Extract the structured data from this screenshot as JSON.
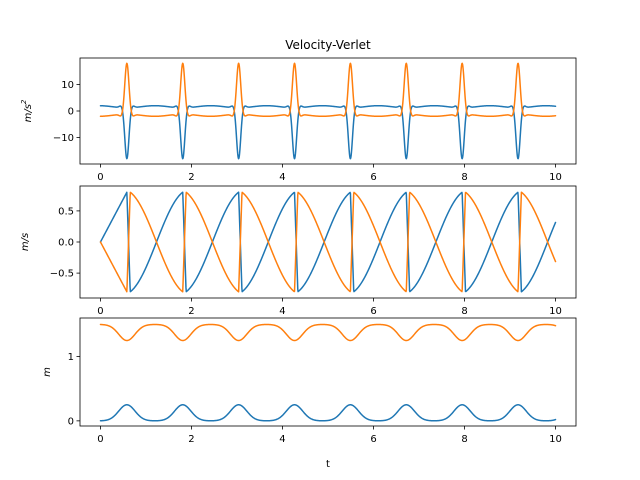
{
  "chart_data": [
    {
      "type": "line",
      "title": "Velocity-Verlet",
      "ylabel": "m/s",
      "ylabel_superscript": "2",
      "xlim": [
        -0.45,
        10.45
      ],
      "ylim": [
        -20,
        20
      ],
      "xticks": [
        0,
        2,
        4,
        6,
        8,
        10
      ],
      "xtick_labels": [
        "0",
        "2",
        "4",
        "6",
        "8",
        "10"
      ],
      "yticks": [
        -10,
        0,
        10
      ],
      "ytick_labels": [
        "−10",
        "0",
        "10"
      ],
      "grid": false,
      "period": 1.228,
      "series": [
        {
          "color": "#1f77b4",
          "description": "acceleration 1: near 1.2-2 between peaks, sharp dip to about -18 at each collision",
          "spike_times": [
            0.58,
            1.81,
            3.04,
            4.26,
            5.49,
            6.72,
            7.95,
            9.17
          ],
          "spike_value": -18,
          "baseline": [
            1.2,
            2.0
          ]
        },
        {
          "color": "#ff7f0e",
          "description": "acceleration 2: near -1.2 to -2 between peaks, sharp spike to about +18 at each collision",
          "spike_times": [
            0.58,
            1.81,
            3.04,
            4.26,
            5.49,
            6.72,
            7.95,
            9.17
          ],
          "spike_value": 18,
          "baseline": [
            -1.2,
            -2.0
          ]
        }
      ]
    },
    {
      "type": "line",
      "title": "",
      "ylabel": "m/s",
      "xlim": [
        -0.45,
        10.45
      ],
      "ylim": [
        -0.9,
        0.9
      ],
      "xticks": [
        0,
        2,
        4,
        6,
        8,
        10
      ],
      "xtick_labels": [
        "0",
        "2",
        "4",
        "6",
        "8",
        "10"
      ],
      "yticks": [
        -0.5,
        0.0,
        0.5
      ],
      "ytick_labels": [
        "−0.5",
        "0.0",
        "0.5"
      ],
      "grid": false,
      "series": [
        {
          "color": "#1f77b4",
          "description": "velocity 1: rises from 0 to +0.8 before each collision, then jumps to -0.8",
          "min": -0.8,
          "max": 0.8,
          "start": 0,
          "end": 0.36
        },
        {
          "color": "#ff7f0e",
          "description": "velocity 2: mirror of velocity 1",
          "min": -0.8,
          "max": 0.8,
          "start": 0,
          "end": -0.36
        }
      ]
    },
    {
      "type": "line",
      "title": "",
      "xlabel": "t",
      "ylabel": "m",
      "xlim": [
        -0.45,
        10.45
      ],
      "ylim": [
        -0.08,
        1.6
      ],
      "xticks": [
        0,
        2,
        4,
        6,
        8,
        10
      ],
      "xtick_labels": [
        "0",
        "2",
        "4",
        "6",
        "8",
        "10"
      ],
      "yticks": [
        0,
        1
      ],
      "ytick_labels": [
        "0",
        "1"
      ],
      "grid": false,
      "series": [
        {
          "color": "#1f77b4",
          "description": "position 1: bumps from 0 up to about 0.25 at each collision",
          "min": 0,
          "max": 0.25
        },
        {
          "color": "#ff7f0e",
          "description": "position 2: near 1.5, dips to about 1.25 at each collision",
          "min": 1.25,
          "max": 1.5
        }
      ]
    }
  ]
}
